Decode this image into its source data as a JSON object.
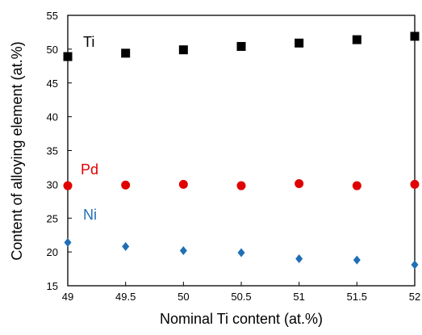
{
  "chart_data": {
    "type": "scatter",
    "xlabel": "Nominal Ti content (at.%)",
    "ylabel": "Content of alloying element (at.%)",
    "xlim": [
      49,
      52
    ],
    "ylim": [
      15,
      55
    ],
    "x_ticks": [
      "49",
      "49.5",
      "50",
      "50.5",
      "51",
      "51.5",
      "52"
    ],
    "y_ticks": [
      "15",
      "20",
      "25",
      "30",
      "35",
      "40",
      "45",
      "50",
      "55"
    ],
    "grid": false,
    "legend": "none",
    "series": [
      {
        "name": "Ti",
        "marker": "square",
        "color": "#000000",
        "x": [
          49,
          49.5,
          50,
          50.5,
          51,
          51.5,
          52
        ],
        "y": [
          48.9,
          49.4,
          49.9,
          50.4,
          50.9,
          51.4,
          51.9
        ]
      },
      {
        "name": "Pd",
        "marker": "circle",
        "color": "#e00000",
        "x": [
          49,
          49.5,
          50,
          50.5,
          51,
          51.5,
          52
        ],
        "y": [
          29.8,
          29.9,
          30.0,
          29.8,
          30.1,
          29.8,
          30.0
        ]
      },
      {
        "name": "Ni",
        "marker": "diamond",
        "color": "#1f6fb5",
        "x": [
          49,
          49.5,
          50,
          50.5,
          51,
          51.5,
          52
        ],
        "y": [
          21.4,
          20.8,
          20.2,
          19.9,
          19.0,
          18.8,
          18.1
        ]
      }
    ]
  }
}
